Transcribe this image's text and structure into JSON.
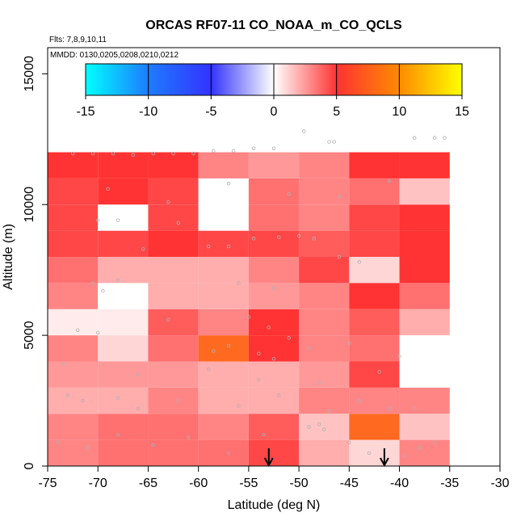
{
  "chart_data": {
    "type": "heatmap",
    "title": "ORCAS RF07-11 CO_NOAA_m_CO_QCLS",
    "subtitle_flights": "Flts: 7,8,9,10,11",
    "subtitle_dates": "MMDD: 0130,0205,0208,0210,0212",
    "xlabel": "Latitude (deg N)",
    "ylabel": "Altitude (m)",
    "xlim": [
      -75,
      -30
    ],
    "ylim": [
      0,
      16000
    ],
    "x_ticks": [
      "-75",
      "-70",
      "-65",
      "-60",
      "-55",
      "-50",
      "-45",
      "-40",
      "-35",
      "-30"
    ],
    "x_tick_values": [
      -75,
      -70,
      -65,
      -60,
      -55,
      -50,
      -45,
      -40,
      -35,
      -30
    ],
    "y_ticks": [
      "0",
      "5000",
      "10000",
      "15000"
    ],
    "y_tick_values": [
      0,
      5000,
      10000,
      15000
    ],
    "colorbar": {
      "range": [
        -15,
        15
      ],
      "ticks": [
        "-15",
        "-10",
        "-5",
        "0",
        "5",
        "10",
        "15"
      ],
      "tick_values": [
        -15,
        -10,
        -5,
        0,
        5,
        10,
        15
      ]
    },
    "x_bin_edges": [
      -75,
      -70,
      -65,
      -60,
      -55,
      -50,
      -45,
      -40,
      -35
    ],
    "y_bin_edges": [
      0,
      1000,
      2000,
      3000,
      4000,
      5000,
      6000,
      7000,
      8000,
      9000,
      10000,
      11000,
      12000
    ],
    "cells": [
      [
        3.0,
        3.5,
        3.5,
        3.5,
        4.5,
        2.0,
        1.0,
        3.0
      ],
      [
        3.0,
        3.5,
        3.5,
        3.0,
        4.0,
        1.5,
        8.0,
        1.5
      ],
      [
        2.0,
        2.0,
        3.0,
        2.0,
        2.0,
        3.0,
        3.0,
        3.0
      ],
      [
        2.5,
        2.5,
        2.5,
        2.0,
        2.0,
        2.5,
        4.5,
        0.0
      ],
      [
        3.0,
        1.0,
        3.5,
        8.0,
        5.5,
        3.0,
        3.5,
        0.0
      ],
      [
        0.5,
        0.5,
        4.0,
        3.0,
        5.5,
        3.0,
        4.0,
        2.0
      ],
      [
        3.0,
        0.0,
        2.0,
        2.0,
        2.5,
        3.0,
        5.5,
        3.5
      ],
      [
        3.5,
        2.0,
        2.0,
        2.0,
        3.0,
        4.5,
        1.0,
        5.5
      ],
      [
        4.5,
        4.5,
        5.5,
        4.5,
        4.5,
        4.0,
        4.5,
        5.5
      ],
      [
        4.5,
        0.0,
        4.5,
        0.0,
        3.5,
        3.0,
        4.5,
        6.0
      ],
      [
        4.5,
        5.0,
        4.5,
        0.0,
        3.5,
        3.0,
        3.5,
        1.5
      ],
      [
        5.5,
        5.5,
        5.0,
        3.0,
        2.5,
        3.0,
        5.5,
        5.5
      ]
    ],
    "arrows_x": [
      -53,
      -41.5
    ],
    "track_points": [
      [
        -72.5,
        11950
      ],
      [
        -70.5,
        11950
      ],
      [
        -68.5,
        11950
      ],
      [
        -66.5,
        11900
      ],
      [
        -64.5,
        11950
      ],
      [
        -62.5,
        11950
      ],
      [
        -60.5,
        11950
      ],
      [
        -58.5,
        12050
      ],
      [
        -56.5,
        12050
      ],
      [
        -54.5,
        12150
      ],
      [
        -52.5,
        12150
      ],
      [
        -49.5,
        12800
      ],
      [
        -47,
        12400
      ],
      [
        -46.5,
        12400
      ],
      [
        -38.5,
        12550
      ],
      [
        -36.5,
        12550
      ],
      [
        -35.5,
        12550
      ],
      [
        -70,
        9400
      ],
      [
        -68,
        9400
      ],
      [
        -65.5,
        8300
      ],
      [
        -62,
        9300
      ],
      [
        -59,
        8400
      ],
      [
        -57,
        8400
      ],
      [
        -54.5,
        8700
      ],
      [
        -52,
        8750
      ],
      [
        -50,
        8800
      ],
      [
        -48.5,
        8700
      ],
      [
        -46,
        8000
      ],
      [
        -44,
        7800
      ],
      [
        -70.5,
        7000
      ],
      [
        -69.5,
        6700
      ],
      [
        -68,
        7100
      ],
      [
        -56,
        7000
      ],
      [
        -52.5,
        6800
      ],
      [
        -72,
        5200
      ],
      [
        -70,
        5100
      ],
      [
        -63,
        5600
      ],
      [
        -55,
        5700
      ],
      [
        -53,
        5300
      ],
      [
        -51,
        4900
      ],
      [
        -58.5,
        4400
      ],
      [
        -57,
        4600
      ],
      [
        -54,
        4300
      ],
      [
        -52.5,
        4100
      ],
      [
        -49,
        4500
      ],
      [
        -45,
        4700
      ],
      [
        -73,
        2700
      ],
      [
        -71.5,
        2500
      ],
      [
        -68,
        2600
      ],
      [
        -66,
        2200
      ],
      [
        -62,
        2500
      ],
      [
        -56,
        2300
      ],
      [
        -52,
        2700
      ],
      [
        -47,
        2100
      ],
      [
        -44,
        2500
      ],
      [
        -41,
        2200
      ],
      [
        -74,
        900
      ],
      [
        -71,
        700
      ],
      [
        -68,
        1200
      ],
      [
        -64.5,
        800
      ],
      [
        -61,
        1100
      ],
      [
        -57,
        500
      ],
      [
        -53.5,
        1200
      ],
      [
        -49,
        1500
      ],
      [
        -48,
        1600
      ],
      [
        -47.5,
        1400
      ],
      [
        -45,
        900
      ],
      [
        -43,
        500
      ],
      [
        -39.5,
        400
      ],
      [
        -38,
        700
      ],
      [
        -36.5,
        900
      ],
      [
        -69,
        10600
      ],
      [
        -63,
        10100
      ],
      [
        -57,
        10800
      ],
      [
        -51,
        10400
      ],
      [
        -46,
        10300
      ],
      [
        -41,
        10900
      ],
      [
        -73.5,
        3900
      ],
      [
        -66,
        3500
      ],
      [
        -59,
        3700
      ],
      [
        -54,
        3300
      ],
      [
        -48,
        3200
      ],
      [
        -42,
        3600
      ],
      [
        -40,
        4200
      ],
      [
        -38.5,
        2200
      ]
    ]
  }
}
